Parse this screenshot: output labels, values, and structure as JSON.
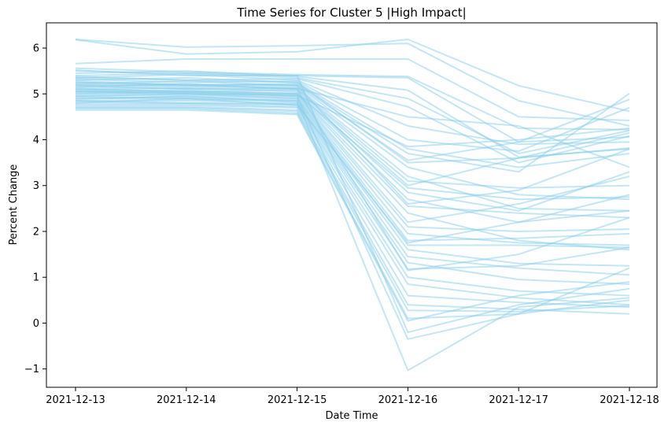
{
  "chart_data": {
    "type": "line",
    "title": "Time Series for Cluster 5 |High Impact|",
    "xlabel": "Date Time",
    "ylabel": "Percent Change",
    "categories": [
      "2021-12-13",
      "2021-12-14",
      "2021-12-15",
      "2021-12-16",
      "2021-12-17",
      "2021-12-18"
    ],
    "ylim": [
      -1.4,
      6.55
    ],
    "yticks": [
      -1,
      0,
      1,
      2,
      3,
      4,
      5,
      6
    ],
    "ytick_labels": [
      "−1",
      "0",
      "1",
      "2",
      "3",
      "4",
      "5",
      "6"
    ],
    "grid": false,
    "line_color": "#87ceeb",
    "line_opacity": 0.5,
    "series": [
      {
        "values": [
          6.19,
          6.02,
          6.05,
          6.1,
          4.85,
          4.3
        ]
      },
      {
        "values": [
          6.18,
          5.87,
          5.92,
          6.19,
          5.18,
          4.62
        ]
      },
      {
        "values": [
          5.66,
          5.76,
          5.76,
          5.76,
          4.5,
          4.42
        ]
      },
      {
        "values": [
          5.56,
          5.48,
          5.42,
          5.38,
          4.25,
          4.22
        ]
      },
      {
        "values": [
          5.52,
          5.4,
          5.4,
          5.35,
          3.95,
          4.06
        ]
      },
      {
        "values": [
          5.45,
          5.5,
          5.38,
          5.08,
          3.62,
          3.8
        ]
      },
      {
        "values": [
          5.4,
          5.45,
          5.35,
          4.9,
          3.7,
          4.2
        ]
      },
      {
        "values": [
          5.38,
          5.3,
          5.33,
          4.72,
          3.5,
          4.08
        ]
      },
      {
        "values": [
          5.35,
          5.42,
          5.3,
          4.3,
          3.9,
          3.95
        ]
      },
      {
        "values": [
          5.32,
          5.25,
          5.28,
          4.0,
          3.75,
          4.7
        ]
      },
      {
        "values": [
          5.3,
          5.35,
          5.25,
          3.8,
          3.4,
          3.7
        ]
      },
      {
        "values": [
          5.28,
          5.2,
          5.22,
          3.7,
          3.3,
          5.01
        ]
      },
      {
        "values": [
          5.25,
          5.18,
          5.2,
          3.55,
          3.95,
          4.88
        ]
      },
      {
        "values": [
          5.22,
          5.28,
          5.18,
          3.4,
          2.8,
          2.7
        ]
      },
      {
        "values": [
          5.2,
          5.15,
          5.15,
          3.2,
          2.5,
          2.45
        ]
      },
      {
        "values": [
          5.18,
          5.1,
          5.12,
          3.1,
          2.95,
          3.0
        ]
      },
      {
        "values": [
          5.15,
          5.22,
          5.1,
          3.0,
          3.6,
          3.82
        ]
      },
      {
        "values": [
          5.12,
          5.05,
          5.08,
          2.85,
          2.45,
          3.3
        ]
      },
      {
        "values": [
          5.1,
          5.12,
          5.05,
          2.7,
          2.2,
          2.8
        ]
      },
      {
        "values": [
          5.08,
          5.02,
          5.02,
          2.55,
          2.4,
          2.3
        ]
      },
      {
        "values": [
          5.05,
          5.08,
          5.0,
          2.4,
          1.8,
          1.6
        ]
      },
      {
        "values": [
          5.02,
          4.98,
          4.98,
          2.2,
          2.6,
          3.2
        ]
      },
      {
        "values": [
          5.0,
          5.05,
          4.95,
          2.1,
          2.0,
          2.05
        ]
      },
      {
        "values": [
          4.98,
          4.95,
          4.92,
          1.95,
          1.75,
          1.7
        ]
      },
      {
        "values": [
          4.95,
          5.0,
          4.9,
          1.8,
          1.85,
          1.95
        ]
      },
      {
        "values": [
          4.92,
          4.92,
          4.88,
          1.7,
          1.7,
          1.65
        ]
      },
      {
        "values": [
          4.9,
          4.88,
          4.85,
          1.6,
          1.3,
          1.25
        ]
      },
      {
        "values": [
          4.88,
          4.95,
          4.82,
          1.45,
          1.2,
          1.05
        ]
      },
      {
        "values": [
          4.85,
          4.85,
          4.8,
          1.32,
          0.95,
          0.85
        ]
      },
      {
        "values": [
          4.82,
          4.8,
          4.78,
          1.18,
          1.25,
          1.65
        ]
      },
      {
        "values": [
          4.8,
          4.9,
          4.75,
          1.0,
          0.7,
          0.6
        ]
      },
      {
        "values": [
          4.78,
          4.78,
          4.72,
          0.85,
          0.55,
          0.4
        ]
      },
      {
        "values": [
          4.75,
          4.75,
          4.7,
          0.6,
          0.45,
          0.35
        ]
      },
      {
        "values": [
          4.72,
          4.72,
          4.65,
          0.4,
          0.3,
          0.2
        ]
      },
      {
        "values": [
          4.7,
          4.7,
          4.62,
          0.28,
          0.25,
          0.38
        ]
      },
      {
        "values": [
          4.68,
          4.68,
          4.58,
          0.1,
          0.2,
          0.5
        ]
      },
      {
        "values": [
          4.65,
          4.65,
          4.55,
          0.05,
          0.6,
          0.9
        ]
      },
      {
        "values": [
          5.5,
          5.45,
          5.4,
          -0.2,
          0.4,
          0.75
        ]
      },
      {
        "values": [
          5.05,
          5.0,
          4.95,
          -0.35,
          0.2,
          1.2
        ]
      },
      {
        "values": [
          4.95,
          4.9,
          4.85,
          -1.03,
          0.35,
          0.55
        ]
      },
      {
        "values": [
          5.15,
          5.12,
          5.1,
          1.15,
          1.5,
          2.3
        ]
      },
      {
        "values": [
          5.25,
          5.2,
          5.18,
          2.6,
          2.9,
          3.8
        ]
      },
      {
        "values": [
          5.35,
          5.3,
          5.25,
          3.5,
          3.6,
          4.15
        ]
      },
      {
        "values": [
          5.05,
          5.02,
          4.97,
          3.85,
          4.0,
          4.25
        ]
      },
      {
        "values": [
          5.1,
          5.05,
          5.0,
          2.95,
          2.7,
          2.75
        ]
      },
      {
        "values": [
          4.85,
          4.8,
          4.76,
          1.75,
          2.2,
          2.45
        ]
      },
      {
        "values": [
          5.2,
          5.18,
          5.12,
          4.5,
          4.3,
          3.4
        ]
      }
    ]
  }
}
